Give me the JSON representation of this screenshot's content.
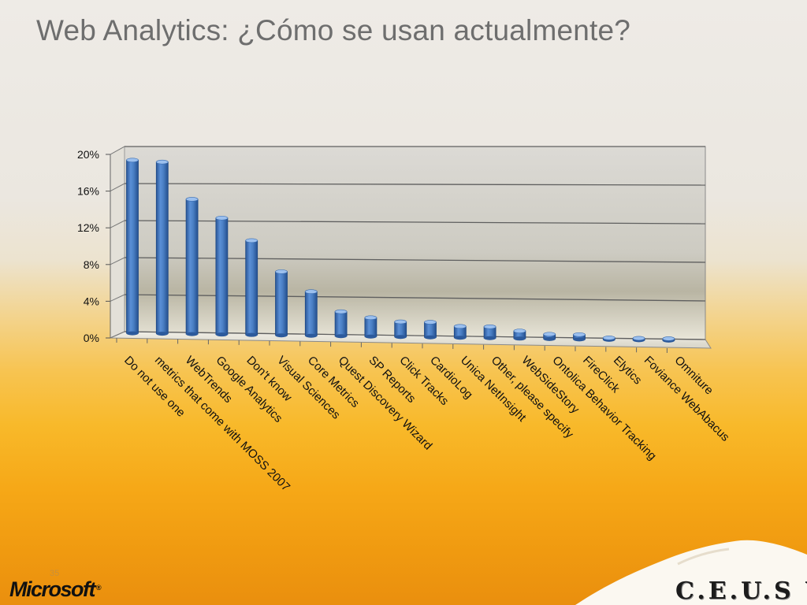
{
  "slide": {
    "title": "Web Analytics: ¿Cómo se usan actualmente?",
    "slide_number": "35",
    "logo_left": "Microsoft",
    "logo_right": "C.E.U.S VI"
  },
  "colors": {
    "bar": "#4a7fc4",
    "bar_dark": "#244f8e",
    "bar_light": "#8fb5e8",
    "title_text": "#6e6e6e",
    "background_orange": "#f6a817"
  },
  "chart_data": {
    "type": "bar",
    "style": "3d-column",
    "title": "",
    "xlabel": "",
    "ylabel": "",
    "ylim": [
      0,
      20
    ],
    "y_tick_labels": [
      "0%",
      "4%",
      "8%",
      "12%",
      "16%",
      "20%"
    ],
    "y_tick_values": [
      0,
      4,
      8,
      12,
      16,
      20
    ],
    "grid": true,
    "legend": "none",
    "categories": [
      "Do not use one",
      "metrics that come with MOSS 2007",
      "WebTrends",
      "Google Analytics",
      "Don't know",
      "Visual Sciences",
      "Core Metrics",
      "Quest Discovery Wizard",
      "SP Reports",
      "Click Tracks",
      "CardioLog",
      "Unica NetInsight",
      "Other, please specify",
      "WebSideStory",
      "Ontolica Behavior Tracking",
      "FireClick",
      "Elytics",
      "Foviance WebAbacus",
      "Omniture"
    ],
    "values": [
      18.7,
      18.5,
      14.5,
      12.5,
      10.1,
      6.8,
      4.7,
      2.6,
      2.0,
      1.6,
      1.6,
      1.2,
      1.2,
      0.8,
      0.5,
      0.5,
      0.2,
      0.2,
      0.2
    ]
  }
}
